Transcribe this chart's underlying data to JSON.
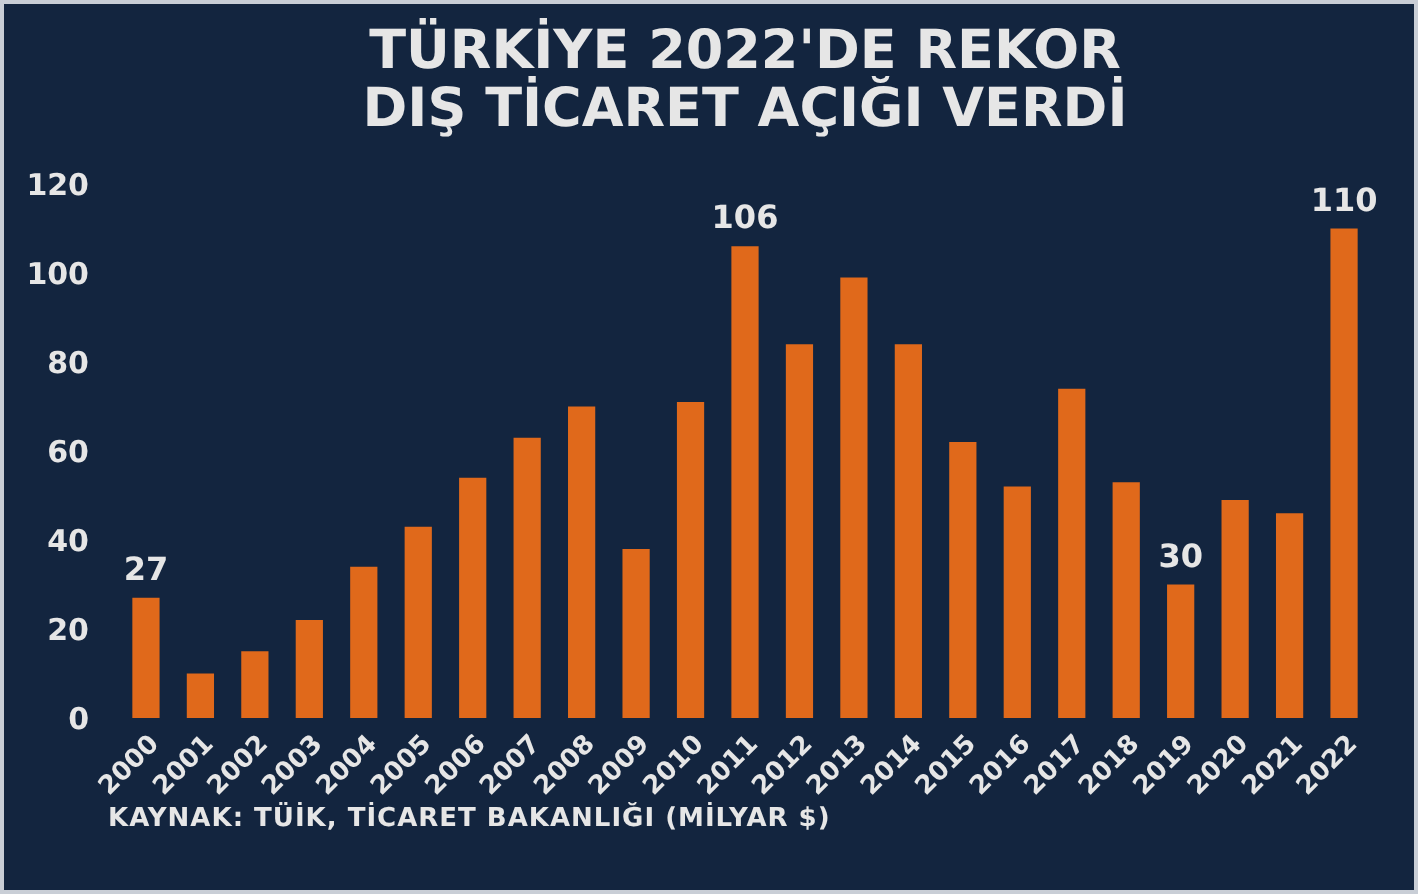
{
  "chart_data": {
    "type": "bar",
    "title": "TÜRKİYE 2022'DE REKOR\nDIŞ TİCARET AÇIĞI VERDİ",
    "categories": [
      "2000",
      "2001",
      "2002",
      "2003",
      "2004",
      "2005",
      "2006",
      "2007",
      "2008",
      "2009",
      "2010",
      "2011",
      "2012",
      "2013",
      "2014",
      "2015",
      "2016",
      "2017",
      "2018",
      "2019",
      "2020",
      "2021",
      "2022"
    ],
    "values": [
      27,
      10,
      15,
      22,
      34,
      43,
      54,
      63,
      70,
      38,
      71,
      106,
      84,
      99,
      84,
      62,
      52,
      74,
      53,
      30,
      49,
      46,
      110
    ],
    "value_labels": [
      "27",
      null,
      null,
      null,
      null,
      null,
      null,
      null,
      null,
      null,
      null,
      "106",
      null,
      null,
      null,
      null,
      null,
      null,
      null,
      "30",
      null,
      null,
      "110"
    ],
    "color": "#e0691b",
    "ylim": [
      0,
      120
    ],
    "yticks": [
      0,
      20,
      40,
      60,
      80,
      100,
      120
    ],
    "annotations": [
      "KAYNAK: TÜİK, TİCARET BAKANLIĞI (MİLYAR $)"
    ]
  }
}
